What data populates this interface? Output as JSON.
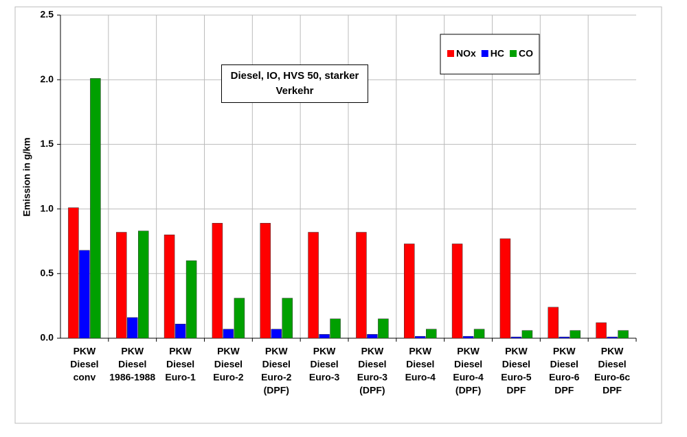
{
  "chart_data": {
    "type": "bar",
    "title": "Diesel, IO, HVS 50, starker Verkehr",
    "y_label": "Emission in g/km",
    "categories": [
      [
        "PKW",
        "Diesel",
        "conv"
      ],
      [
        "PKW",
        "Diesel",
        "1986-1988"
      ],
      [
        "PKW",
        "Diesel",
        "Euro-1"
      ],
      [
        "PKW",
        "Diesel",
        "Euro-2"
      ],
      [
        "PKW",
        "Diesel",
        "Euro-2",
        "(DPF)"
      ],
      [
        "PKW",
        "Diesel",
        "Euro-3"
      ],
      [
        "PKW",
        "Diesel",
        "Euro-3",
        "(DPF)"
      ],
      [
        "PKW",
        "Diesel",
        "Euro-4"
      ],
      [
        "PKW",
        "Diesel",
        "Euro-4",
        "(DPF)"
      ],
      [
        "PKW",
        "Diesel",
        "Euro-5",
        "DPF"
      ],
      [
        "PKW",
        "Diesel",
        "Euro-6",
        "DPF"
      ],
      [
        "PKW",
        "Diesel",
        "Euro-6c",
        "DPF"
      ]
    ],
    "series": [
      {
        "name": "NOx",
        "color": "#ff0000",
        "values": [
          1.01,
          0.82,
          0.8,
          0.89,
          0.89,
          0.82,
          0.82,
          0.73,
          0.73,
          0.77,
          0.24,
          0.12
        ]
      },
      {
        "name": "HC",
        "color": "#0000ff",
        "values": [
          0.68,
          0.16,
          0.11,
          0.07,
          0.07,
          0.03,
          0.03,
          0.015,
          0.015,
          0.01,
          0.01,
          0.01
        ]
      },
      {
        "name": "CO",
        "color": "#00a000",
        "values": [
          2.01,
          0.83,
          0.6,
          0.31,
          0.31,
          0.15,
          0.15,
          0.07,
          0.07,
          0.06,
          0.06,
          0.06
        ]
      }
    ],
    "ylim": [
      0,
      2.5
    ],
    "yticks": [
      {
        "value": 0,
        "label": "0.0"
      },
      0.5,
      {
        "value": 1,
        "label": "1.0"
      },
      1.5,
      {
        "value": 2,
        "label": "2.0"
      },
      2.5
    ],
    "grid": true
  }
}
